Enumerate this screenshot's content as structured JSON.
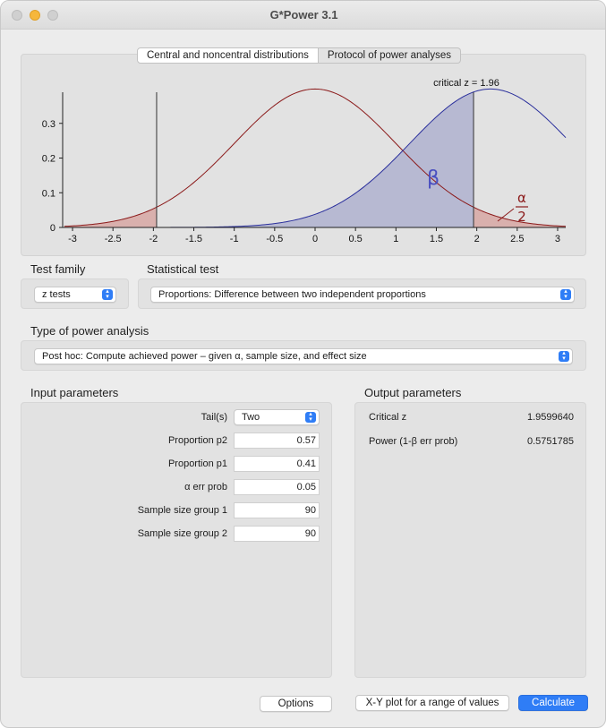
{
  "window": {
    "title": "G*Power 3.1"
  },
  "tabs": [
    {
      "label": "Central and noncentral distributions",
      "active": true
    },
    {
      "label": "Protocol of power analyses",
      "active": false
    }
  ],
  "graph": {
    "critical_label": "critical z = 1.96",
    "beta_label": "β",
    "alpha_numerator": "α",
    "alpha_denominator": "2",
    "colors": {
      "null_curve": "#8b1a1a",
      "alt_curve": "#2a2f9c",
      "beta_fill": "#b3b5d0",
      "alpha_fill": "#d9b0ad",
      "beta_text": "#4a4fc0"
    }
  },
  "chart_data": {
    "type": "area",
    "x_ticks": [
      "-3",
      "-2.5",
      "-2",
      "-1.5",
      "-1",
      "-0.5",
      "0",
      "0.5",
      "1",
      "1.5",
      "2",
      "2.5",
      "3"
    ],
    "y_ticks": [
      "0",
      "0.1",
      "0.2",
      "0.3"
    ],
    "xlim": [
      -3.1,
      3.1
    ],
    "ylim": [
      0,
      0.4
    ],
    "series": [
      {
        "kind": "null_distribution",
        "mean": 0,
        "sd": 1
      },
      {
        "kind": "alternative_distribution",
        "mean": 2.17,
        "sd": 1
      }
    ],
    "critical_values": [
      -1.96,
      1.96
    ]
  },
  "test_family": {
    "label": "Test family",
    "value": "z tests"
  },
  "statistical_test": {
    "label": "Statistical test",
    "value": "Proportions: Difference between two independent proportions"
  },
  "power_analysis": {
    "label": "Type of power analysis",
    "value": "Post hoc: Compute achieved power – given α, sample size, and effect size"
  },
  "input": {
    "label": "Input parameters",
    "tails": {
      "label": "Tail(s)",
      "value": "Two"
    },
    "params": [
      {
        "label": "Proportion p2",
        "value": "0.57"
      },
      {
        "label": "Proportion p1",
        "value": "0.41"
      },
      {
        "label": "α err prob",
        "value": "0.05"
      },
      {
        "label": "Sample size group 1",
        "value": "90"
      },
      {
        "label": "Sample size group 2",
        "value": "90"
      }
    ]
  },
  "output": {
    "label": "Output parameters",
    "rows": [
      {
        "label": "Critical z",
        "value": "1.9599640"
      },
      {
        "label": "Power (1-β err prob)",
        "value": "0.5751785"
      }
    ]
  },
  "buttons": {
    "options": "Options",
    "xy_plot": "X-Y plot for a range of values",
    "calculate": "Calculate"
  }
}
